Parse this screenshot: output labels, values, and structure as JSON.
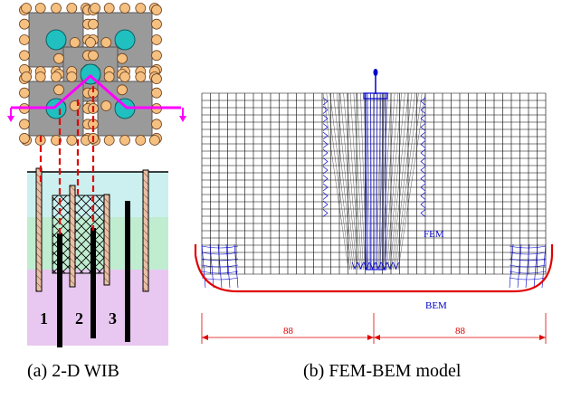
{
  "figure": {
    "panel_a": {
      "caption": "(a) 2-D WIB",
      "pile_labels": [
        "1",
        "2",
        "3"
      ]
    },
    "panel_b": {
      "caption": "(b) FEM-BEM model",
      "fem_label": "FEM",
      "bem_label": "BEM",
      "dim_left": "88",
      "dim_right": "88"
    }
  },
  "colors": {
    "pile_circle": "#f5c080",
    "cap_fill": "#9a9a9a",
    "pile_fill": "#20c0c0",
    "magenta_line": "#ff00ff",
    "red_dash": "#e00000",
    "layer_top": "#ccf0f0",
    "layer_mid": "#c0ecd0",
    "layer_bottom": "#e8c8f0",
    "mesh": "#000000",
    "fine_mesh": "#0000cc",
    "bem": "#e00000"
  }
}
